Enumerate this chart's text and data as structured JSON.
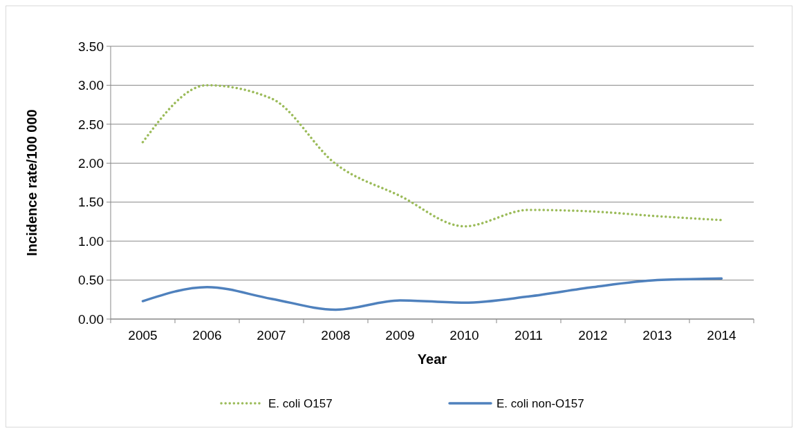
{
  "chart_data": {
    "type": "line",
    "xlabel": "Year",
    "ylabel": "Incidence rate/100 000",
    "categories": [
      "2005",
      "2006",
      "2007",
      "2008",
      "2009",
      "2010",
      "2011",
      "2012",
      "2013",
      "2014"
    ],
    "ylim": [
      0,
      3.5
    ],
    "yticks": [
      {
        "value": 0,
        "label": "0.00"
      },
      {
        "value": 0.5,
        "label": "0.50"
      },
      {
        "value": 1,
        "label": "1.00"
      },
      {
        "value": 1.5,
        "label": "1.50"
      },
      {
        "value": 2,
        "label": "2.00"
      },
      {
        "value": 2.5,
        "label": "2.50"
      },
      {
        "value": 3,
        "label": "3.00"
      },
      {
        "value": 3.5,
        "label": "3.50"
      }
    ],
    "grid": "y",
    "legend": "bottom",
    "series": [
      {
        "name": "E. coli O157",
        "color": "#9bbb59",
        "line_style": "dotted",
        "values": [
          2.27,
          3.0,
          2.83,
          1.99,
          1.58,
          1.19,
          1.4,
          1.38,
          1.32,
          1.27
        ]
      },
      {
        "name": "E. coli non-O157",
        "color": "#4f81bd",
        "line_style": "solid",
        "values": [
          0.23,
          0.41,
          0.26,
          0.12,
          0.24,
          0.21,
          0.29,
          0.41,
          0.5,
          0.52
        ]
      }
    ]
  }
}
